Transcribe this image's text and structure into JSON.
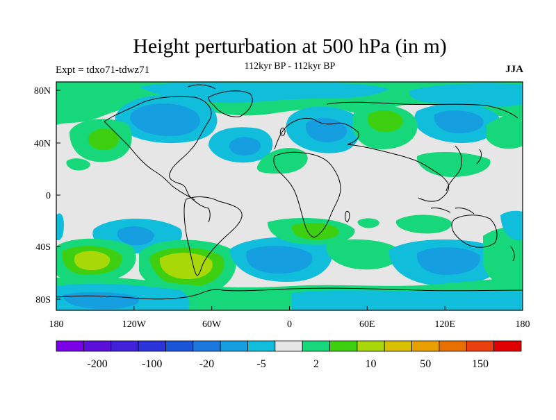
{
  "header": {
    "title": "Height perturbation at 500 hPa (in m)",
    "subtitle": "112kyr BP - 112kyr BP",
    "experiment": "Expt = tdxo71-tdwz71",
    "season": "JJA"
  },
  "map": {
    "lon_ticks": [
      "180",
      "120W",
      "60W",
      "0",
      "60E",
      "120E",
      "180"
    ],
    "lat_ticks": [
      "80N",
      "40N",
      "0",
      "40S",
      "80S"
    ],
    "background_color": "#e6e6e6"
  },
  "colorbar": {
    "colors": [
      "#7a00e6",
      "#5a10d8",
      "#4020d8",
      "#2a34d8",
      "#1a55d8",
      "#1c78dc",
      "#159ee0",
      "#10bedc",
      "#e6e6e6",
      "#16d87a",
      "#3ed010",
      "#a8d808",
      "#d8c000",
      "#e8a000",
      "#e87000",
      "#e84010",
      "#e00000"
    ],
    "labels": [
      "-200",
      "-100",
      "-20",
      "-5",
      "2",
      "10",
      "50",
      "150"
    ]
  },
  "palette": {
    "neg_light": "#10bedc",
    "neg_mid": "#159ee0",
    "neg_dark": "#1c78dc",
    "pos_light": "#16d87a",
    "pos_mid": "#3ed010",
    "pos_strong": "#a8d808",
    "pos_strongest": "#d8c000"
  }
}
